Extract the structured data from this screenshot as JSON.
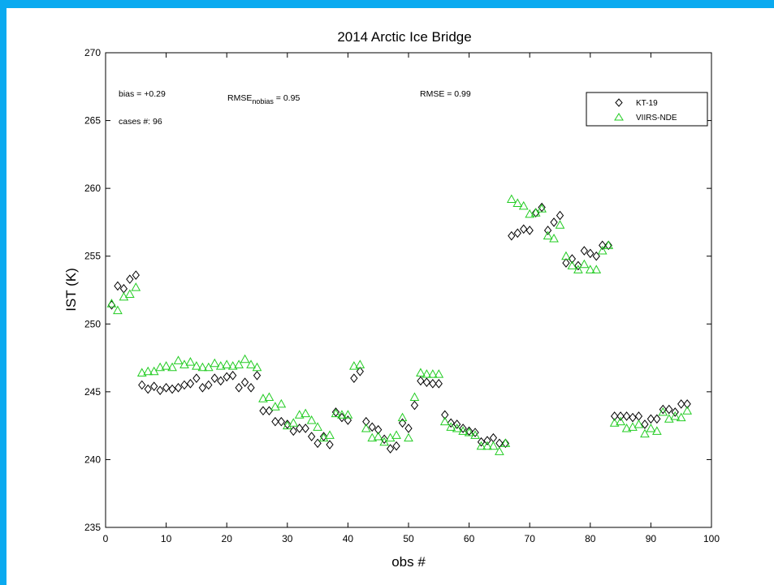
{
  "chart_data": {
    "type": "scatter",
    "title": "2014 Arctic Ice Bridge",
    "xlabel": "obs #",
    "ylabel": "IST (K)",
    "xlim": [
      0,
      100
    ],
    "ylim": [
      235,
      270
    ],
    "xticks": [
      0,
      10,
      20,
      30,
      40,
      50,
      60,
      70,
      80,
      90,
      100
    ],
    "yticks": [
      235,
      240,
      245,
      250,
      255,
      260,
      265,
      270
    ],
    "grid": false,
    "legend_position": "top-right",
    "annotations": {
      "bias": "bias = +0.29",
      "cases": "cases #: 96",
      "rmse_nobias_prefix": "RMSE",
      "rmse_nobias_sub": "nobias",
      "rmse_nobias_value": " = 0.95",
      "rmse": "RMSE = 0.99"
    },
    "series": [
      {
        "name": "KT-19",
        "marker": "diamond",
        "color": "#000000",
        "x": [
          1,
          2,
          3,
          4,
          5,
          6,
          7,
          8,
          9,
          10,
          11,
          12,
          13,
          14,
          15,
          16,
          17,
          18,
          19,
          20,
          21,
          22,
          23,
          24,
          25,
          26,
          27,
          28,
          29,
          30,
          31,
          32,
          33,
          34,
          35,
          36,
          37,
          38,
          39,
          40,
          41,
          42,
          43,
          44,
          45,
          46,
          47,
          48,
          49,
          50,
          51,
          52,
          53,
          54,
          55,
          56,
          57,
          58,
          59,
          60,
          61,
          62,
          63,
          64,
          65,
          66,
          67,
          68,
          69,
          70,
          71,
          72,
          73,
          74,
          75,
          76,
          77,
          78,
          79,
          80,
          81,
          82,
          83,
          84,
          85,
          86,
          87,
          88,
          89,
          90,
          91,
          92,
          93,
          94,
          95,
          96
        ],
        "y": [
          251.4,
          252.8,
          252.6,
          253.3,
          253.6,
          245.5,
          245.2,
          245.4,
          245.1,
          245.3,
          245.2,
          245.3,
          245.5,
          245.6,
          246.0,
          245.3,
          245.5,
          246.0,
          245.8,
          246.1,
          246.2,
          245.3,
          245.7,
          245.3,
          246.2,
          243.6,
          243.6,
          242.8,
          242.8,
          242.6,
          242.1,
          242.3,
          242.3,
          241.7,
          241.2,
          241.7,
          241.1,
          243.5,
          243.1,
          242.9,
          246.0,
          246.5,
          242.8,
          242.4,
          242.2,
          241.5,
          240.8,
          241.0,
          242.7,
          242.3,
          244.0,
          245.8,
          245.7,
          245.6,
          245.6,
          243.3,
          242.7,
          242.6,
          242.3,
          242.1,
          242.0,
          241.3,
          241.4,
          241.6,
          241.2,
          241.2,
          256.5,
          256.7,
          257.0,
          256.9,
          258.2,
          258.6,
          256.9,
          257.5,
          258.0,
          254.5,
          254.8,
          254.3,
          255.4,
          255.2,
          255.0,
          255.8,
          255.8,
          243.2,
          243.2,
          243.2,
          243.1,
          243.2,
          242.6,
          243.0,
          243.0,
          243.7,
          243.7,
          243.5,
          244.1,
          244.1
        ]
      },
      {
        "name": "VIIRS-NDE",
        "marker": "triangle",
        "color": "#22cc22",
        "x": [
          1,
          2,
          3,
          4,
          5,
          6,
          7,
          8,
          9,
          10,
          11,
          12,
          13,
          14,
          15,
          16,
          17,
          18,
          19,
          20,
          21,
          22,
          23,
          24,
          25,
          26,
          27,
          28,
          29,
          30,
          31,
          32,
          33,
          34,
          35,
          36,
          37,
          38,
          39,
          40,
          41,
          42,
          43,
          44,
          45,
          46,
          47,
          48,
          49,
          50,
          51,
          52,
          53,
          54,
          55,
          56,
          57,
          58,
          59,
          60,
          61,
          62,
          63,
          64,
          65,
          66,
          67,
          68,
          69,
          70,
          71,
          72,
          73,
          74,
          75,
          76,
          77,
          78,
          79,
          80,
          81,
          82,
          83,
          84,
          85,
          86,
          87,
          88,
          89,
          90,
          91,
          92,
          93,
          94,
          95,
          96
        ],
        "y": [
          251.5,
          251.0,
          252.0,
          252.2,
          252.7,
          246.4,
          246.5,
          246.5,
          246.8,
          246.9,
          246.8,
          247.3,
          247.0,
          247.2,
          246.9,
          246.8,
          246.8,
          247.1,
          246.9,
          247.0,
          246.9,
          247.0,
          247.4,
          247.0,
          246.8,
          244.5,
          244.6,
          243.9,
          244.1,
          242.5,
          242.7,
          243.3,
          243.4,
          242.9,
          242.4,
          241.6,
          241.8,
          243.4,
          243.3,
          243.3,
          246.9,
          247.0,
          242.3,
          241.6,
          241.7,
          241.3,
          241.6,
          241.8,
          243.1,
          241.6,
          244.6,
          246.4,
          246.3,
          246.3,
          246.3,
          242.8,
          242.4,
          242.3,
          242.1,
          242.0,
          241.8,
          241.0,
          241.0,
          241.0,
          240.6,
          241.2,
          259.2,
          258.9,
          258.7,
          258.1,
          258.2,
          258.5,
          256.5,
          256.3,
          257.3,
          255.0,
          254.3,
          254.0,
          254.4,
          254.0,
          254.0,
          255.4,
          255.8,
          242.7,
          242.8,
          242.3,
          242.4,
          242.6,
          241.9,
          242.3,
          242.1,
          243.5,
          243.0,
          243.2,
          243.1,
          243.6
        ]
      }
    ]
  }
}
